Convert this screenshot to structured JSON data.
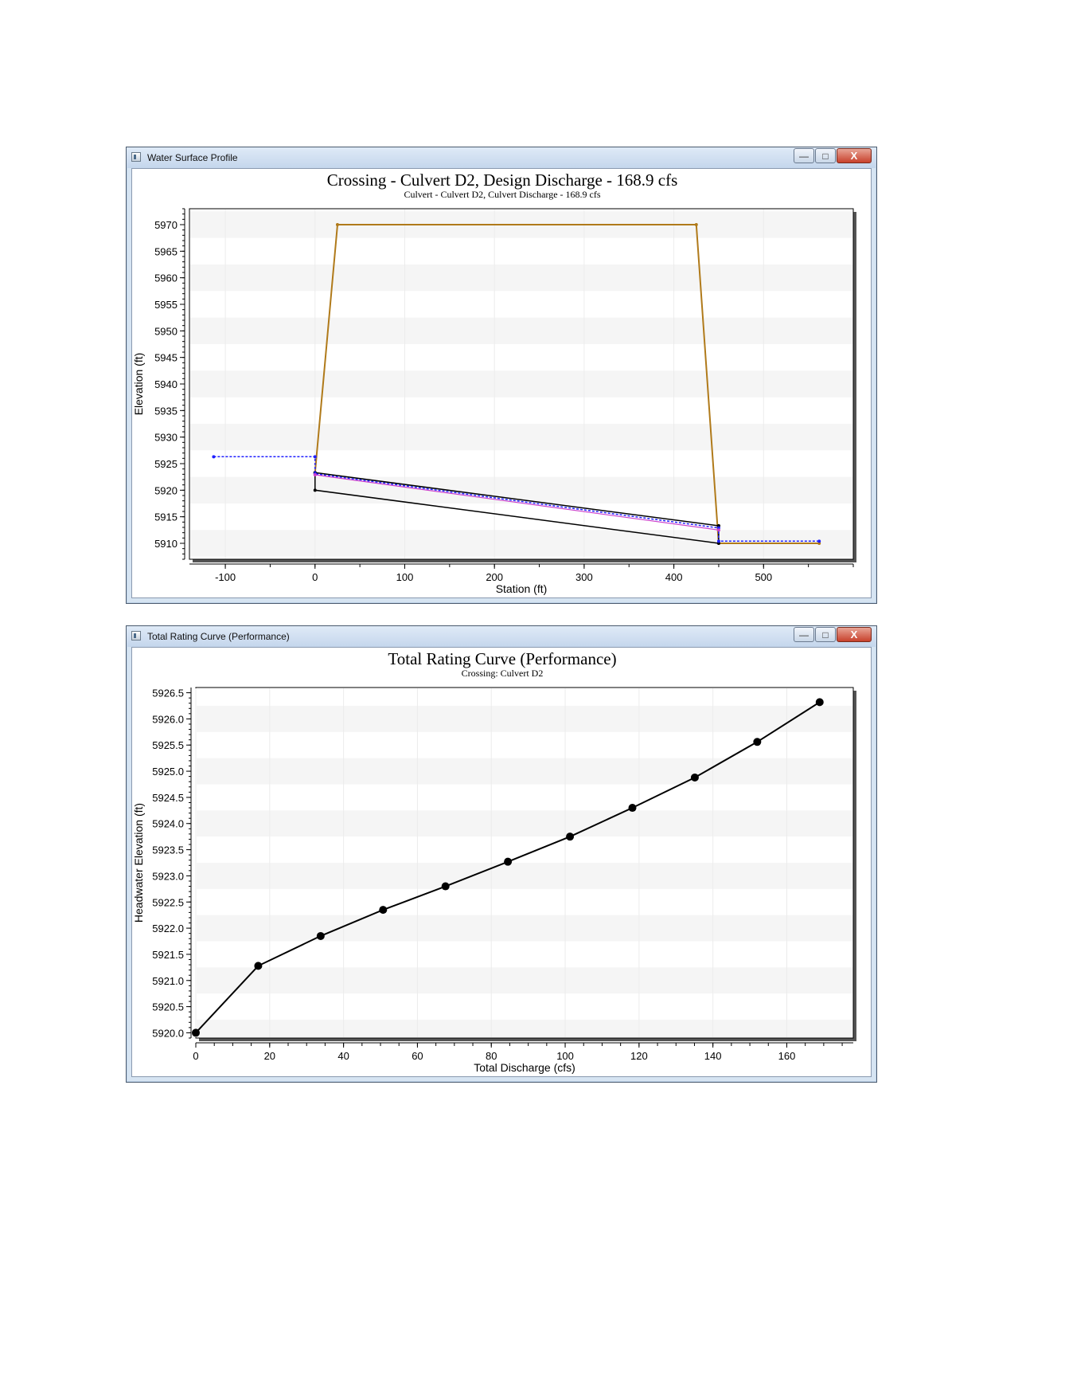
{
  "windows": [
    {
      "window_title": "Water Surface Profile",
      "buttons": {
        "minimize": "—",
        "maximize": "□",
        "close": "X"
      }
    },
    {
      "window_title": "Total Rating Curve (Performance)",
      "buttons": {
        "minimize": "—",
        "maximize": "□",
        "close": "X"
      }
    }
  ],
  "chart_data": [
    {
      "type": "line",
      "title": "Crossing - Culvert D2, Design Discharge - 168.9 cfs",
      "subtitle": "Culvert - Culvert D2, Culvert Discharge - 168.9 cfs",
      "xlabel": "Station (ft)",
      "ylabel": "Elevation (ft)",
      "xlim": [
        -140,
        600
      ],
      "ylim": [
        5907,
        5973
      ],
      "x_ticks": [
        -100,
        0,
        100,
        200,
        300,
        400,
        500
      ],
      "y_ticks": [
        5910,
        5915,
        5920,
        5925,
        5930,
        5935,
        5940,
        5945,
        5950,
        5955,
        5960,
        5965,
        5970
      ],
      "grid": true,
      "series": [
        {
          "color": "#b07a1a",
          "x": [
            0,
            25,
            425,
            450,
            562
          ],
          "y": [
            5923.3,
            5970,
            5970,
            5910,
            5910
          ]
        },
        {
          "color": "#000000",
          "x": [
            0,
            0,
            450,
            450
          ],
          "y": [
            5923.3,
            5920,
            5910,
            5913.3
          ]
        },
        {
          "color": "#000000",
          "x": [
            0,
            450
          ],
          "y": [
            5923.3,
            5913.3
          ]
        },
        {
          "color": "#2020ff",
          "x": [
            -113,
            0,
            0,
            450,
            450,
            562
          ],
          "y": [
            5926.3,
            5926.3,
            5923.1,
            5912.9,
            5910.4,
            5910.4
          ]
        },
        {
          "color": "#cc40cc",
          "x": [
            0,
            450
          ],
          "y": [
            5922.9,
            5912.5
          ]
        }
      ]
    },
    {
      "type": "line",
      "title": "Total Rating Curve (Performance)",
      "subtitle": "Crossing: Culvert D2",
      "xlabel": "Total Discharge (cfs)",
      "ylabel": "Headwater Elevation (ft)",
      "xlim": [
        0,
        178
      ],
      "ylim": [
        5919.9,
        5926.6
      ],
      "x_ticks": [
        0,
        20,
        40,
        60,
        80,
        100,
        120,
        140,
        160
      ],
      "y_ticks": [
        "5920.0",
        "5920.5",
        "5921.0",
        "5921.5",
        "5922.0",
        "5922.5",
        "5923.0",
        "5923.5",
        "5924.0",
        "5924.5",
        "5925.0",
        "5925.5",
        "5926.0",
        "5926.5"
      ],
      "grid": true,
      "series": [
        {
          "color": "#000000",
          "x": [
            0,
            16.9,
            33.8,
            50.7,
            67.6,
            84.5,
            101.3,
            118.2,
            135.1,
            152.0,
            168.9
          ],
          "y": [
            5920.0,
            5921.28,
            5921.85,
            5922.35,
            5922.8,
            5923.27,
            5923.75,
            5924.3,
            5924.88,
            5925.56,
            5926.32
          ]
        }
      ]
    }
  ]
}
